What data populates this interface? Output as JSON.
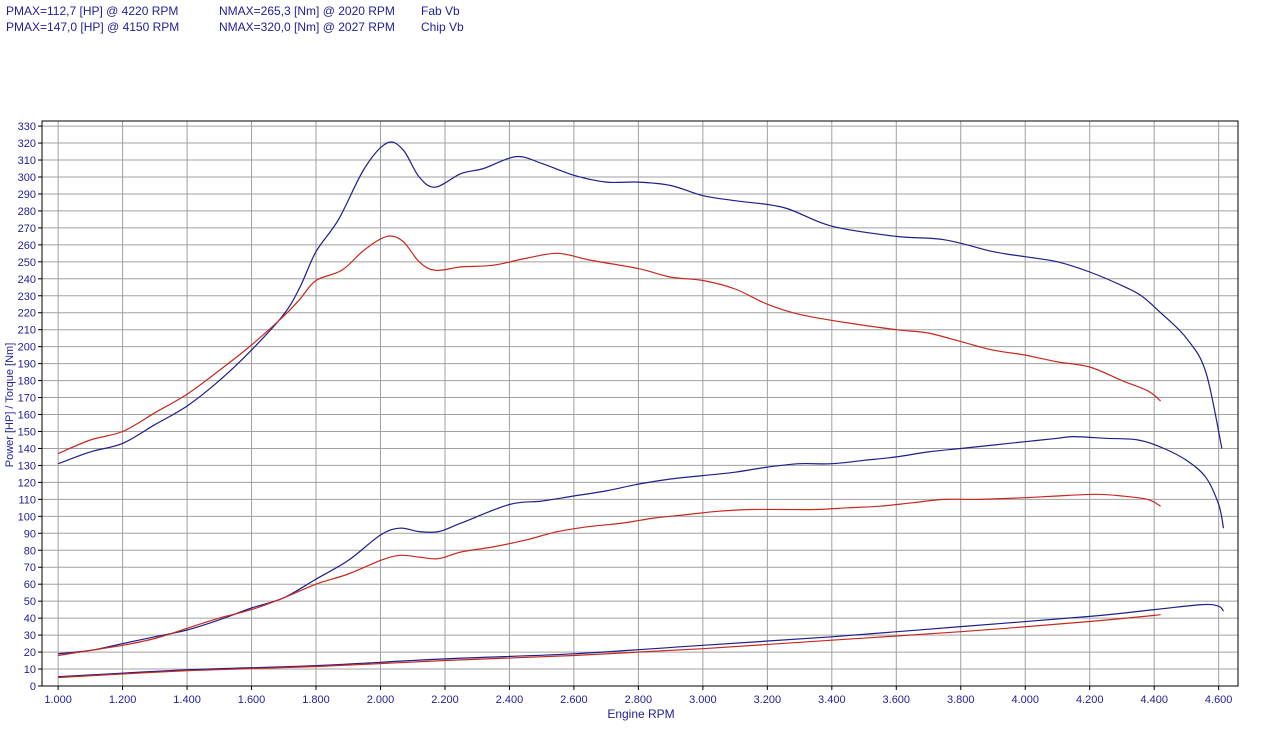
{
  "header": {
    "rows": [
      {
        "pmax": "PMAX=112,7 [HP] @ 4220 RPM",
        "nmax": "NMAX=265,3 [Nm] @ 2020 RPM",
        "label": "Fab Vb"
      },
      {
        "pmax": "PMAX=147,0 [HP] @ 4150 RPM",
        "nmax": "NMAX=320,0 [Nm] @ 2027 RPM",
        "label": "Chip Vb"
      }
    ]
  },
  "colors": {
    "stock": "#c8281e",
    "chip": "#1e1e8c",
    "grid": "#a0a0a0",
    "text": "#1e1e96"
  },
  "chart_data": {
    "type": "line",
    "xlabel": "Engine RPM",
    "ylabel": "Power [HP] / Torque [Nm]",
    "xlim": [
      950,
      4660
    ],
    "ylim": [
      0,
      333
    ],
    "x_ticks": [
      1000,
      1200,
      1400,
      1600,
      1800,
      2000,
      2200,
      2400,
      2600,
      2800,
      3000,
      3200,
      3400,
      3600,
      3800,
      4000,
      4200,
      4400,
      4600
    ],
    "x_tick_labels": [
      "1.000",
      "1.200",
      "1.400",
      "1.600",
      "1.800",
      "2.000",
      "2.200",
      "2.400",
      "2.600",
      "2.800",
      "3.000",
      "3.200",
      "3.400",
      "3.600",
      "3.800",
      "4.000",
      "4.200",
      "4.400",
      "4.600"
    ],
    "y_ticks": [
      0,
      10,
      20,
      30,
      40,
      50,
      60,
      70,
      80,
      90,
      100,
      110,
      120,
      130,
      140,
      150,
      160,
      170,
      180,
      190,
      200,
      210,
      220,
      230,
      240,
      250,
      260,
      270,
      280,
      290,
      300,
      310,
      320,
      330
    ],
    "series": [
      {
        "id": "chip_torque",
        "color": "chip",
        "points": [
          [
            1000,
            131
          ],
          [
            1100,
            138
          ],
          [
            1200,
            143
          ],
          [
            1300,
            154
          ],
          [
            1400,
            165
          ],
          [
            1500,
            180
          ],
          [
            1600,
            198
          ],
          [
            1700,
            219
          ],
          [
            1750,
            235
          ],
          [
            1800,
            256
          ],
          [
            1870,
            275
          ],
          [
            1950,
            305
          ],
          [
            2020,
            320
          ],
          [
            2070,
            316
          ],
          [
            2120,
            300
          ],
          [
            2170,
            294
          ],
          [
            2250,
            302
          ],
          [
            2320,
            305
          ],
          [
            2420,
            312
          ],
          [
            2500,
            308
          ],
          [
            2600,
            301
          ],
          [
            2700,
            297
          ],
          [
            2800,
            297
          ],
          [
            2900,
            295
          ],
          [
            3000,
            289
          ],
          [
            3100,
            286
          ],
          [
            3250,
            282
          ],
          [
            3400,
            271
          ],
          [
            3600,
            265
          ],
          [
            3750,
            263
          ],
          [
            3900,
            256
          ],
          [
            4000,
            253
          ],
          [
            4100,
            250
          ],
          [
            4200,
            244
          ],
          [
            4300,
            236
          ],
          [
            4360,
            230
          ],
          [
            4420,
            220
          ],
          [
            4500,
            205
          ],
          [
            4560,
            185
          ],
          [
            4610,
            140
          ]
        ]
      },
      {
        "id": "stock_torque",
        "color": "stock",
        "points": [
          [
            1000,
            137
          ],
          [
            1100,
            145
          ],
          [
            1200,
            150
          ],
          [
            1300,
            161
          ],
          [
            1400,
            172
          ],
          [
            1500,
            186
          ],
          [
            1600,
            201
          ],
          [
            1700,
            218
          ],
          [
            1750,
            228
          ],
          [
            1800,
            239
          ],
          [
            1880,
            245
          ],
          [
            1950,
            257
          ],
          [
            2020,
            265
          ],
          [
            2070,
            262
          ],
          [
            2120,
            250
          ],
          [
            2170,
            245
          ],
          [
            2250,
            247
          ],
          [
            2350,
            248
          ],
          [
            2450,
            252
          ],
          [
            2550,
            255
          ],
          [
            2650,
            251
          ],
          [
            2800,
            246
          ],
          [
            2900,
            241
          ],
          [
            3000,
            239
          ],
          [
            3100,
            234
          ],
          [
            3200,
            225
          ],
          [
            3300,
            219
          ],
          [
            3450,
            214
          ],
          [
            3600,
            210
          ],
          [
            3700,
            208
          ],
          [
            3800,
            203
          ],
          [
            3900,
            198
          ],
          [
            4000,
            195
          ],
          [
            4100,
            191
          ],
          [
            4200,
            188
          ],
          [
            4300,
            180
          ],
          [
            4380,
            174
          ],
          [
            4420,
            168
          ]
        ]
      },
      {
        "id": "chip_power",
        "color": "chip",
        "points": [
          [
            1000,
            19
          ],
          [
            1100,
            21
          ],
          [
            1200,
            25
          ],
          [
            1300,
            29
          ],
          [
            1400,
            33
          ],
          [
            1500,
            39
          ],
          [
            1600,
            46
          ],
          [
            1700,
            52
          ],
          [
            1800,
            63
          ],
          [
            1900,
            74
          ],
          [
            2000,
            89
          ],
          [
            2060,
            93
          ],
          [
            2120,
            91
          ],
          [
            2180,
            91
          ],
          [
            2250,
            96
          ],
          [
            2400,
            107
          ],
          [
            2500,
            109
          ],
          [
            2600,
            112
          ],
          [
            2700,
            115
          ],
          [
            2800,
            119
          ],
          [
            2900,
            122
          ],
          [
            3000,
            124
          ],
          [
            3100,
            126
          ],
          [
            3200,
            129
          ],
          [
            3300,
            131
          ],
          [
            3400,
            131
          ],
          [
            3500,
            133
          ],
          [
            3600,
            135
          ],
          [
            3700,
            138
          ],
          [
            3800,
            140
          ],
          [
            3900,
            142
          ],
          [
            4000,
            144
          ],
          [
            4100,
            146
          ],
          [
            4150,
            147
          ],
          [
            4250,
            146
          ],
          [
            4350,
            145
          ],
          [
            4430,
            140
          ],
          [
            4500,
            133
          ],
          [
            4560,
            123
          ],
          [
            4600,
            107
          ],
          [
            4615,
            93
          ]
        ]
      },
      {
        "id": "stock_power",
        "color": "stock",
        "points": [
          [
            1000,
            18
          ],
          [
            1100,
            21
          ],
          [
            1200,
            24
          ],
          [
            1300,
            28
          ],
          [
            1400,
            34
          ],
          [
            1500,
            40
          ],
          [
            1600,
            45
          ],
          [
            1700,
            52
          ],
          [
            1800,
            60
          ],
          [
            1900,
            66
          ],
          [
            2000,
            74
          ],
          [
            2060,
            77
          ],
          [
            2120,
            76
          ],
          [
            2180,
            75
          ],
          [
            2250,
            79
          ],
          [
            2350,
            82
          ],
          [
            2450,
            86
          ],
          [
            2550,
            91
          ],
          [
            2650,
            94
          ],
          [
            2750,
            96
          ],
          [
            2850,
            99
          ],
          [
            2950,
            101
          ],
          [
            3050,
            103
          ],
          [
            3150,
            104
          ],
          [
            3250,
            104
          ],
          [
            3350,
            104
          ],
          [
            3450,
            105
          ],
          [
            3550,
            106
          ],
          [
            3650,
            108
          ],
          [
            3750,
            110
          ],
          [
            3850,
            110
          ],
          [
            4000,
            111
          ],
          [
            4100,
            112
          ],
          [
            4220,
            113
          ],
          [
            4300,
            112
          ],
          [
            4380,
            110
          ],
          [
            4420,
            106
          ]
        ]
      },
      {
        "id": "chip_loss",
        "color": "chip",
        "points": [
          [
            1000,
            5.5
          ],
          [
            1400,
            9.5
          ],
          [
            1800,
            12
          ],
          [
            2200,
            16
          ],
          [
            2600,
            19
          ],
          [
            3000,
            24
          ],
          [
            3400,
            29
          ],
          [
            3800,
            35
          ],
          [
            4200,
            41
          ],
          [
            4400,
            45
          ],
          [
            4550,
            48
          ],
          [
            4600,
            47
          ],
          [
            4615,
            44
          ]
        ]
      },
      {
        "id": "stock_loss",
        "color": "stock",
        "points": [
          [
            1000,
            5
          ],
          [
            1400,
            9
          ],
          [
            1800,
            11.5
          ],
          [
            2200,
            15
          ],
          [
            2600,
            18
          ],
          [
            3000,
            22
          ],
          [
            3400,
            27
          ],
          [
            3800,
            32
          ],
          [
            4200,
            38
          ],
          [
            4420,
            42
          ]
        ]
      }
    ]
  }
}
